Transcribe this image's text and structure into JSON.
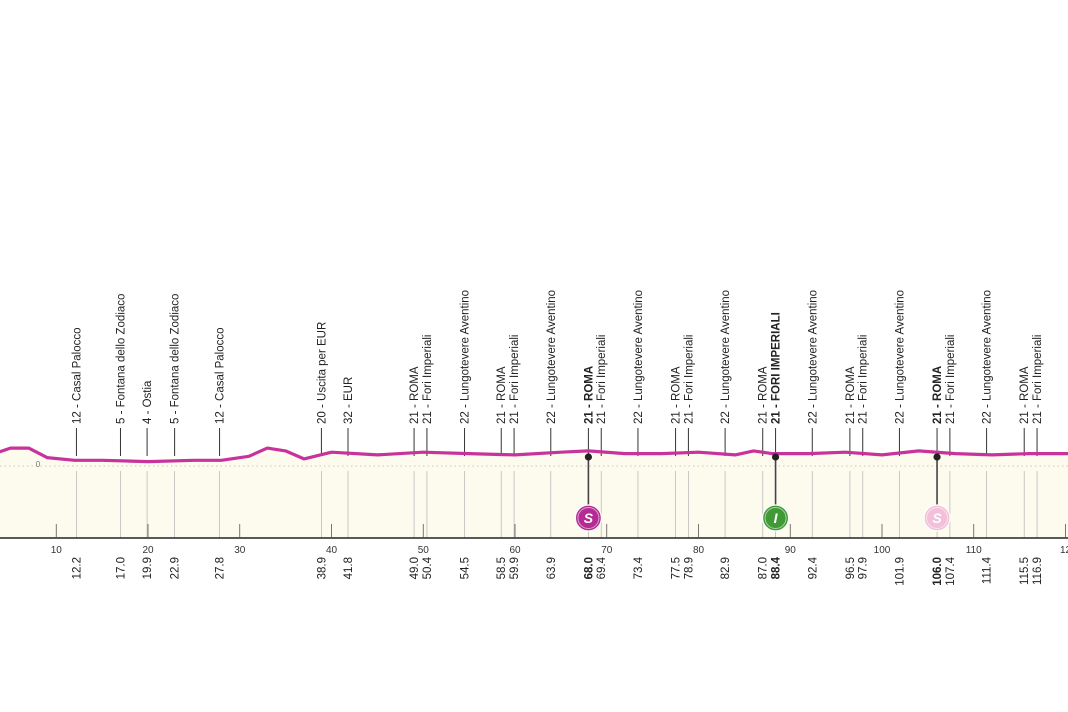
{
  "colors": {
    "profile_line": "#c8339b",
    "area_fill": "#fdfbee",
    "marker_line": "#444444",
    "sprint_dark": "#b52b94",
    "sprint_light": "#f2c0d8",
    "intermediate": "#3f9a36"
  },
  "profile": {
    "zero_label": "0",
    "elevation_profile_m": [
      [
        -10,
        12
      ],
      [
        -2,
        3
      ],
      [
        2,
        4
      ],
      [
        5,
        11
      ],
      [
        7,
        11
      ],
      [
        9,
        4
      ],
      [
        12,
        2
      ],
      [
        15,
        2
      ],
      [
        20,
        1
      ],
      [
        25,
        2
      ],
      [
        28,
        2
      ],
      [
        31,
        5
      ],
      [
        33,
        11
      ],
      [
        35,
        9
      ],
      [
        37,
        3
      ],
      [
        40,
        8
      ],
      [
        45,
        6
      ],
      [
        50,
        8
      ],
      [
        55,
        7
      ],
      [
        60,
        6
      ],
      [
        65,
        8
      ],
      [
        68,
        9
      ],
      [
        72,
        7
      ],
      [
        76,
        7
      ],
      [
        80,
        8
      ],
      [
        84,
        6
      ],
      [
        86,
        9
      ],
      [
        88,
        7
      ],
      [
        92,
        7
      ],
      [
        96,
        8
      ],
      [
        100,
        6
      ],
      [
        104,
        9
      ],
      [
        108,
        7
      ],
      [
        112,
        6
      ],
      [
        116,
        7
      ],
      [
        120,
        7
      ],
      [
        124,
        7
      ]
    ],
    "marker_icons": [
      "S",
      "I",
      "S"
    ],
    "axis_ticks": [
      "10",
      "20",
      "30",
      "40",
      "50",
      "60",
      "70",
      "80",
      "90",
      "100",
      "110",
      "12"
    ],
    "points": [
      {
        "km": 12.2,
        "label": "12 - Casal Palocco",
        "km_label": "12.2",
        "bold": false
      },
      {
        "km": 17.0,
        "label": "5 - Fontana dello Zodiaco",
        "km_label": "17.0",
        "bold": false
      },
      {
        "km": 19.9,
        "label": "4 - Ostia",
        "km_label": "19.9",
        "bold": false
      },
      {
        "km": 22.9,
        "label": "5 - Fontana dello Zodiaco",
        "km_label": "22.9",
        "bold": false
      },
      {
        "km": 27.8,
        "label": "12 - Casal Palocco",
        "km_label": "27.8",
        "bold": false
      },
      {
        "km": 38.9,
        "label": "20 - Uscita per EUR",
        "km_label": "38.9",
        "bold": false
      },
      {
        "km": 41.8,
        "label": "32 - EUR",
        "km_label": "41.8",
        "bold": false
      },
      {
        "km": 49.0,
        "label": "21 - ROMA",
        "km_label": "49.0",
        "bold": false
      },
      {
        "km": 50.4,
        "label": "21 - Fori Imperiali",
        "km_label": "50.4",
        "bold": false
      },
      {
        "km": 54.5,
        "label": "22 - Lungotevere Aventino",
        "km_label": "54.5",
        "bold": false
      },
      {
        "km": 58.5,
        "label": "21 - ROMA",
        "km_label": "58.5",
        "bold": false
      },
      {
        "km": 59.9,
        "label": "21 - Fori Imperiali",
        "km_label": "59.9",
        "bold": false
      },
      {
        "km": 63.9,
        "label": "22 - Lungotevere Aventino",
        "km_label": "63.9",
        "bold": false
      },
      {
        "km": 68.0,
        "label": "21 - ROMA",
        "km_label": "68.0",
        "bold": true,
        "marker": 0
      },
      {
        "km": 69.4,
        "label": "21 - Fori Imperiali",
        "km_label": "69.4",
        "bold": false
      },
      {
        "km": 73.4,
        "label": "22 - Lungotevere Aventino",
        "km_label": "73.4",
        "bold": false
      },
      {
        "km": 77.5,
        "label": "21 - ROMA",
        "km_label": "77.5",
        "bold": false
      },
      {
        "km": 78.9,
        "label": "21 - Fori Imperiali",
        "km_label": "78.9",
        "bold": false
      },
      {
        "km": 82.9,
        "label": "22 - Lungotevere Aventino",
        "km_label": "82.9",
        "bold": false
      },
      {
        "km": 87.0,
        "label": "21 - ROMA",
        "km_label": "87.0",
        "bold": false
      },
      {
        "km": 88.4,
        "label": "21 - FORI IMPERIALI",
        "km_label": "88.4",
        "bold": true,
        "marker": 1
      },
      {
        "km": 92.4,
        "label": "22 - Lungotevere Aventino",
        "km_label": "92.4",
        "bold": false
      },
      {
        "km": 96.5,
        "label": "21 - ROMA",
        "km_label": "96.5",
        "bold": false
      },
      {
        "km": 97.9,
        "label": "21 - Fori Imperiali",
        "km_label": "97.9",
        "bold": false
      },
      {
        "km": 101.9,
        "label": "22 - Lungotevere Aventino",
        "km_label": "101.9",
        "bold": false
      },
      {
        "km": 106.0,
        "label": "21 - ROMA",
        "km_label": "106.0",
        "bold": true,
        "marker": 2
      },
      {
        "km": 107.4,
        "label": "21 - Fori Imperiali",
        "km_label": "107.4",
        "bold": false
      },
      {
        "km": 111.4,
        "label": "22 - Lungotevere Aventino",
        "km_label": "111.4",
        "bold": false
      },
      {
        "km": 115.5,
        "label": "21 - ROMA",
        "km_label": "115.5",
        "bold": false
      },
      {
        "km": 116.9,
        "label": "21 - Fori Imperiali",
        "km_label": "116.9",
        "bold": false
      }
    ]
  }
}
